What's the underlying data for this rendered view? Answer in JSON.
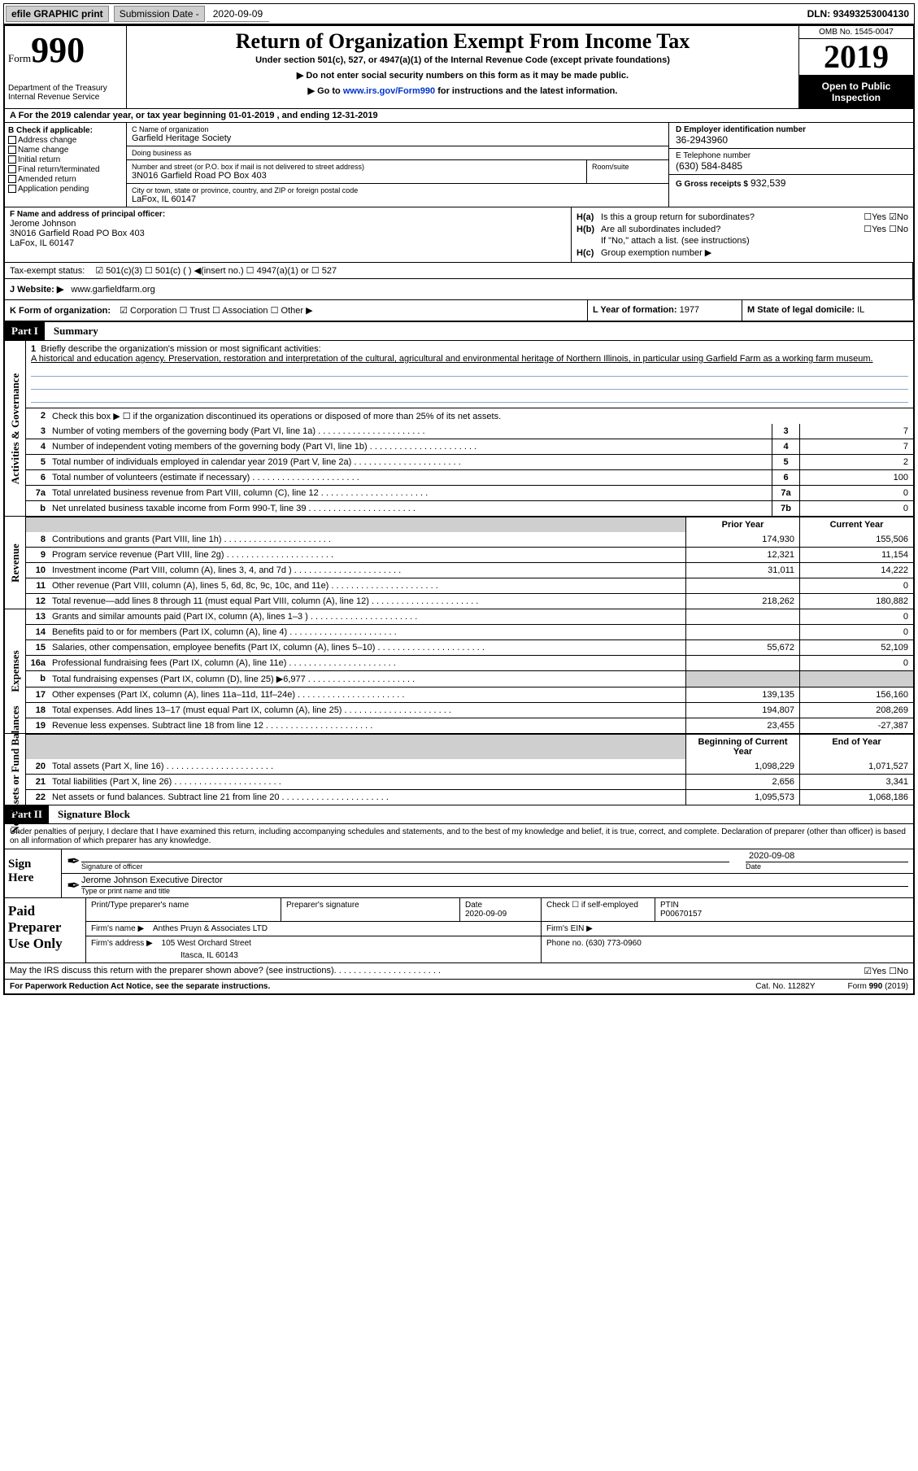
{
  "topbar": {
    "efile": "efile GRAPHIC print",
    "subdate_label": "Submission Date -",
    "subdate_value": "2020-09-09",
    "dln": "DLN: 93493253004130"
  },
  "header": {
    "form_word": "Form",
    "form_num": "990",
    "dept": "Department of the Treasury\nInternal Revenue Service",
    "title": "Return of Organization Exempt From Income Tax",
    "sub1": "Under section 501(c), 527, or 4947(a)(1) of the Internal Revenue Code (except private foundations)",
    "sub2": "▶ Do not enter social security numbers on this form as it may be made public.",
    "sub3_pre": "▶ Go to ",
    "sub3_link": "www.irs.gov/Form990",
    "sub3_post": " for instructions and the latest information.",
    "omb": "OMB No. 1545-0047",
    "year": "2019",
    "public": "Open to Public Inspection"
  },
  "row_a": "A For the 2019 calendar year, or tax year beginning 01-01-2019    , and ending 12-31-2019",
  "col_b": {
    "title": "B Check if applicable:",
    "opts": [
      "Address change",
      "Name change",
      "Initial return",
      "Final return/terminated",
      "Amended return",
      "Application pending"
    ]
  },
  "col_c": {
    "name_lbl": "C Name of organization",
    "name_val": "Garfield Heritage Society",
    "dba_lbl": "Doing business as",
    "dba_val": "",
    "addr_lbl": "Number and street (or P.O. box if mail is not delivered to street address)",
    "addr_val": "3N016 Garfield Road PO Box 403",
    "room_lbl": "Room/suite",
    "city_lbl": "City or town, state or province, country, and ZIP or foreign postal code",
    "city_val": "LaFox, IL  60147"
  },
  "col_d": {
    "ein_lbl": "D Employer identification number",
    "ein_val": "36-2943960",
    "tel_lbl": "E Telephone number",
    "tel_val": "(630) 584-8485",
    "gross_lbl": "G Gross receipts $",
    "gross_val": "932,539"
  },
  "row_f": {
    "lbl": "F  Name and address of principal officer:",
    "name": "Jerome Johnson",
    "addr1": "3N016 Garfield Road PO Box 403",
    "addr2": "LaFox, IL  60147"
  },
  "row_h": {
    "ha_lbl": "H(a)",
    "ha_txt": "Is this a group return for subordinates?",
    "ha_yn": "☐Yes ☑No",
    "hb_lbl": "H(b)",
    "hb_txt": "Are all subordinates included?",
    "hb_yn": "☐Yes ☐No",
    "hb_note": "If \"No,\" attach a list. (see instructions)",
    "hc_lbl": "H(c)",
    "hc_txt": "Group exemption number ▶"
  },
  "tax_status": {
    "lbl": "Tax-exempt status:",
    "opts": "☑ 501(c)(3)   ☐ 501(c) (  ) ◀(insert no.)   ☐ 4947(a)(1) or   ☐ 527"
  },
  "website": {
    "lbl": "J   Website: ▶",
    "val": "www.garfieldfarm.org"
  },
  "row_k": {
    "lbl": "K Form of organization:",
    "opts": "☑ Corporation  ☐ Trust  ☐ Association  ☐ Other ▶",
    "l_lbl": "L Year of formation:",
    "l_val": "1977",
    "m_lbl": "M State of legal domicile:",
    "m_val": "IL"
  },
  "part1": {
    "bar": "Part I",
    "title": "Summary",
    "q1_lbl": "1",
    "q1_txt": "Briefly describe the organization's mission or most significant activities:",
    "mission": "A historical and education agency. Preservation, restoration and interpretation of the cultural, agricultural and environmental heritage of Northern Illinois, in particular using Garfield Farm as a working farm museum.",
    "q2_txt": "Check this box ▶ ☐  if the organization discontinued its operations or disposed of more than 25% of its net assets.",
    "rows_gov": [
      {
        "n": "3",
        "t": "Number of voting members of the governing body (Part VI, line 1a)",
        "box": "3",
        "v": "7"
      },
      {
        "n": "4",
        "t": "Number of independent voting members of the governing body (Part VI, line 1b)",
        "box": "4",
        "v": "7"
      },
      {
        "n": "5",
        "t": "Total number of individuals employed in calendar year 2019 (Part V, line 2a)",
        "box": "5",
        "v": "2"
      },
      {
        "n": "6",
        "t": "Total number of volunteers (estimate if necessary)",
        "box": "6",
        "v": "100"
      },
      {
        "n": "7a",
        "t": "Total unrelated business revenue from Part VIII, column (C), line 12",
        "box": "7a",
        "v": "0"
      },
      {
        "n": "b",
        "t": "Net unrelated business taxable income from Form 990-T, line 39",
        "box": "7b",
        "v": "0"
      }
    ],
    "col_prior": "Prior Year",
    "col_curr": "Current Year",
    "rows_rev": [
      {
        "n": "8",
        "t": "Contributions and grants (Part VIII, line 1h)",
        "p": "174,930",
        "c": "155,506"
      },
      {
        "n": "9",
        "t": "Program service revenue (Part VIII, line 2g)",
        "p": "12,321",
        "c": "11,154"
      },
      {
        "n": "10",
        "t": "Investment income (Part VIII, column (A), lines 3, 4, and 7d )",
        "p": "31,011",
        "c": "14,222"
      },
      {
        "n": "11",
        "t": "Other revenue (Part VIII, column (A), lines 5, 6d, 8c, 9c, 10c, and 11e)",
        "p": "",
        "c": "0"
      },
      {
        "n": "12",
        "t": "Total revenue—add lines 8 through 11 (must equal Part VIII, column (A), line 12)",
        "p": "218,262",
        "c": "180,882"
      }
    ],
    "rows_exp": [
      {
        "n": "13",
        "t": "Grants and similar amounts paid (Part IX, column (A), lines 1–3 )",
        "p": "",
        "c": "0"
      },
      {
        "n": "14",
        "t": "Benefits paid to or for members (Part IX, column (A), line 4)",
        "p": "",
        "c": "0"
      },
      {
        "n": "15",
        "t": "Salaries, other compensation, employee benefits (Part IX, column (A), lines 5–10)",
        "p": "55,672",
        "c": "52,109"
      },
      {
        "n": "16a",
        "t": "Professional fundraising fees (Part IX, column (A), line 11e)",
        "p": "",
        "c": "0"
      },
      {
        "n": "b",
        "t": "Total fundraising expenses (Part IX, column (D), line 25) ▶6,977",
        "p": "SHADE",
        "c": "SHADE"
      },
      {
        "n": "17",
        "t": "Other expenses (Part IX, column (A), lines 11a–11d, 11f–24e)",
        "p": "139,135",
        "c": "156,160"
      },
      {
        "n": "18",
        "t": "Total expenses. Add lines 13–17 (must equal Part IX, column (A), line 25)",
        "p": "194,807",
        "c": "208,269"
      },
      {
        "n": "19",
        "t": "Revenue less expenses. Subtract line 18 from line 12",
        "p": "23,455",
        "c": "-27,387"
      }
    ],
    "col_begin": "Beginning of Current Year",
    "col_end": "End of Year",
    "rows_net": [
      {
        "n": "20",
        "t": "Total assets (Part X, line 16)",
        "p": "1,098,229",
        "c": "1,071,527"
      },
      {
        "n": "21",
        "t": "Total liabilities (Part X, line 26)",
        "p": "2,656",
        "c": "3,341"
      },
      {
        "n": "22",
        "t": "Net assets or fund balances. Subtract line 21 from line 20",
        "p": "1,095,573",
        "c": "1,068,186"
      }
    ],
    "side_gov": "Activities & Governance",
    "side_rev": "Revenue",
    "side_exp": "Expenses",
    "side_net": "Net Assets or Fund Balances"
  },
  "part2": {
    "bar": "Part II",
    "title": "Signature Block",
    "decl": "Under penalties of perjury, I declare that I have examined this return, including accompanying schedules and statements, and to the best of my knowledge and belief, it is true, correct, and complete. Declaration of preparer (other than officer) is based on all information of which preparer has any knowledge."
  },
  "sign": {
    "left": "Sign Here",
    "sig_lbl": "Signature of officer",
    "date_lbl": "Date",
    "date_val": "2020-09-08",
    "name_val": "Jerome Johnson  Executive Director",
    "name_lbl": "Type or print name and title"
  },
  "prep": {
    "left": "Paid Preparer Use Only",
    "r1": {
      "c1": "Print/Type preparer's name",
      "c2": "Preparer's signature",
      "c3_lbl": "Date",
      "c3_val": "2020-09-09",
      "c4": "Check ☐ if self-employed",
      "c5_lbl": "PTIN",
      "c5_val": "P00670157"
    },
    "r2": {
      "lbl": "Firm's name    ▶",
      "val": "Anthes Pruyn & Associates LTD",
      "ein": "Firm's EIN ▶"
    },
    "r3": {
      "lbl": "Firm's address ▶",
      "val1": "105 West Orchard Street",
      "val2": "Itasca, IL  60143",
      "phone_lbl": "Phone no.",
      "phone_val": "(630) 773-0960"
    }
  },
  "footer": {
    "discuss": "May the IRS discuss this return with the preparer shown above? (see instructions)",
    "yn": "☑Yes  ☐No",
    "pra": "For Paperwork Reduction Act Notice, see the separate instructions.",
    "cat": "Cat. No. 11282Y",
    "form": "Form 990 (2019)"
  }
}
